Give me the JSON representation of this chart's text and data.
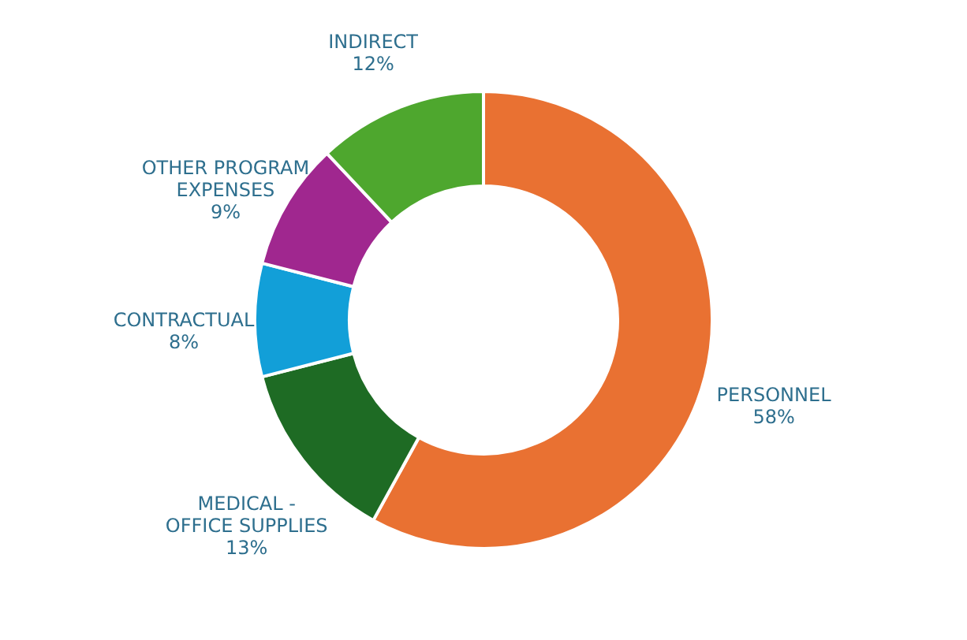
{
  "chart_data": {
    "type": "donut",
    "categories": [
      "PERSONNEL",
      "MEDICAL - OFFICE SUPPLIES",
      "CONTRACTUAL",
      "OTHER PROGRAM EXPENSES",
      "INDIRECT"
    ],
    "values": [
      58,
      13,
      8,
      9,
      12
    ],
    "value_labels": [
      "58%",
      "13%",
      "8%",
      "9%",
      "12%"
    ],
    "colors": [
      "#e97132",
      "#1e6b24",
      "#129fd8",
      "#a0278f",
      "#4ea72e"
    ]
  }
}
